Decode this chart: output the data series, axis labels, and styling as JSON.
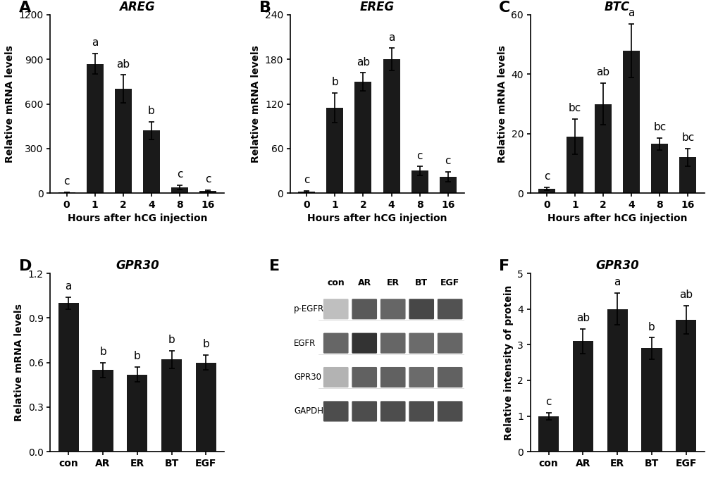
{
  "panel_A": {
    "title": "AREG",
    "categories": [
      "0",
      "1",
      "2",
      "4",
      "8",
      "16"
    ],
    "values": [
      5,
      870,
      700,
      420,
      40,
      15
    ],
    "errors": [
      2,
      70,
      95,
      60,
      15,
      5
    ],
    "letters": [
      "c",
      "a",
      "ab",
      "b",
      "c",
      "c"
    ],
    "ylabel": "Relative mRNA levels",
    "xlabel": "Hours after hCG injection",
    "ylim": [
      0,
      1200
    ],
    "yticks": [
      0,
      300,
      600,
      900,
      1200
    ]
  },
  "panel_B": {
    "title": "EREG",
    "categories": [
      "0",
      "1",
      "2",
      "4",
      "8",
      "16"
    ],
    "values": [
      2,
      115,
      150,
      180,
      30,
      22
    ],
    "errors": [
      1,
      20,
      12,
      15,
      6,
      7
    ],
    "letters": [
      "c",
      "b",
      "ab",
      "a",
      "c",
      "c"
    ],
    "ylabel": "Relative mRNA levels",
    "xlabel": "Hours after hCG injection",
    "ylim": [
      0,
      240
    ],
    "yticks": [
      0,
      60,
      120,
      180,
      240
    ]
  },
  "panel_C": {
    "title": "BTC",
    "categories": [
      "0",
      "1",
      "2",
      "4",
      "8",
      "16"
    ],
    "values": [
      1.5,
      19,
      30,
      48,
      16.5,
      12
    ],
    "errors": [
      0.5,
      6,
      7,
      9,
      2,
      3
    ],
    "letters": [
      "c",
      "bc",
      "ab",
      "a",
      "bc",
      "bc"
    ],
    "ylabel": "Relative mRNA levels",
    "xlabel": "Hours after hCG injection",
    "ylim": [
      0,
      60
    ],
    "yticks": [
      0,
      20,
      40,
      60
    ]
  },
  "panel_D": {
    "title": "GPR30",
    "categories": [
      "con",
      "AR",
      "ER",
      "BT",
      "EGF"
    ],
    "values": [
      1.0,
      0.55,
      0.52,
      0.62,
      0.6
    ],
    "errors": [
      0.04,
      0.05,
      0.05,
      0.06,
      0.05
    ],
    "letters": [
      "a",
      "b",
      "b",
      "b",
      "b"
    ],
    "ylabel": "Relative mRNA levels",
    "xlabel": "",
    "ylim": [
      0,
      1.2
    ],
    "yticks": [
      0.0,
      0.3,
      0.6,
      0.9,
      1.2
    ]
  },
  "panel_F": {
    "title": "GPR30",
    "categories": [
      "con",
      "AR",
      "ER",
      "BT",
      "EGF"
    ],
    "values": [
      1.0,
      3.1,
      4.0,
      2.9,
      3.7
    ],
    "errors": [
      0.1,
      0.35,
      0.45,
      0.3,
      0.4
    ],
    "letters": [
      "c",
      "ab",
      "a",
      "b",
      "ab"
    ],
    "ylabel": "Relative intensity of protein",
    "xlabel": "",
    "ylim": [
      0,
      5
    ],
    "yticks": [
      0,
      1,
      2,
      3,
      4,
      5
    ]
  },
  "bar_color": "#1a1a1a",
  "bar_color_dark": "#0d0d0d",
  "letter_fontsize": 11,
  "label_fontsize": 10,
  "title_fontsize": 12,
  "panel_label_fontsize": 16
}
